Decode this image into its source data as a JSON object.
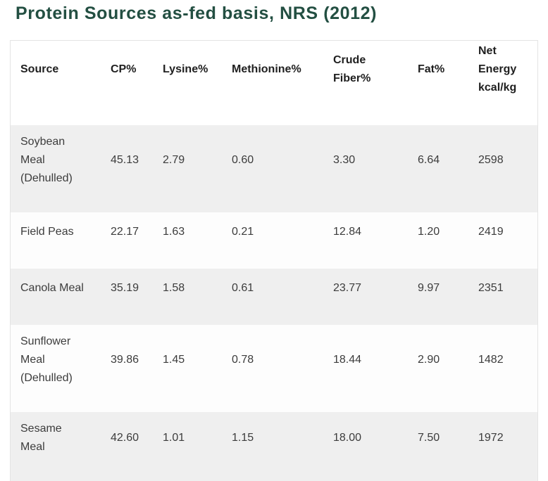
{
  "title": "Protein Sources as-fed basis, NRS (2012)",
  "colors": {
    "title_green": "#234f42",
    "row_stripe_gray": "#efefef",
    "row_white": "#fdfdfd",
    "table_border": "#e4e4e4",
    "header_text": "#1f1f1f",
    "body_text": "#3c3c3c"
  },
  "table": {
    "columns": [
      {
        "key": "source",
        "label": "Source"
      },
      {
        "key": "cp",
        "label": "CP%"
      },
      {
        "key": "lysine",
        "label": "Lysine%"
      },
      {
        "key": "methionine",
        "label": "Methionine%"
      },
      {
        "key": "crude_fiber",
        "label": "Crude\nFiber%"
      },
      {
        "key": "fat",
        "label": "Fat%"
      },
      {
        "key": "net_energy",
        "label": "Net\nEnergy\nkcal/kg"
      }
    ],
    "rows": [
      {
        "source": "Soybean\nMeal\n(Dehulled)",
        "cp": "45.13",
        "lysine": "2.79",
        "methionine": "0.60",
        "crude_fiber": "3.30",
        "fat": "6.64",
        "net_energy": "2598"
      },
      {
        "source": "Field Peas",
        "cp": "22.17",
        "lysine": "1.63",
        "methionine": "0.21",
        "crude_fiber": "12.84",
        "fat": "1.20",
        "net_energy": "2419"
      },
      {
        "source": "Canola Meal",
        "cp": "35.19",
        "lysine": "1.58",
        "methionine": "0.61",
        "crude_fiber": "23.77",
        "fat": "9.97",
        "net_energy": "2351"
      },
      {
        "source": "Sunflower\nMeal\n(Dehulled)",
        "cp": "39.86",
        "lysine": "1.45",
        "methionine": "0.78",
        "crude_fiber": "18.44",
        "fat": "2.90",
        "net_energy": "1482"
      },
      {
        "source": "Sesame\nMeal",
        "cp": "42.60",
        "lysine": "1.01",
        "methionine": "1.15",
        "crude_fiber": "18.00",
        "fat": "7.50",
        "net_energy": "1972"
      }
    ]
  }
}
